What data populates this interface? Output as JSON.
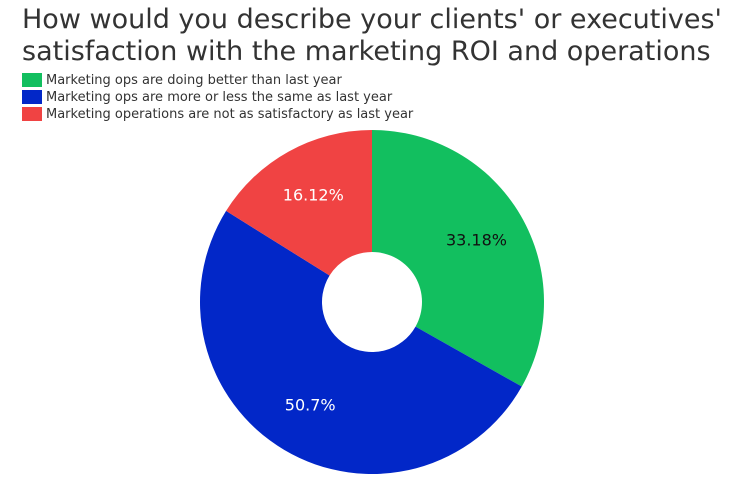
{
  "chart_data": {
    "type": "pie",
    "title": "How would you describe your clients' or executives' satisfaction with the marketing ROI and operations",
    "legend_position": "top-left",
    "slices": [
      {
        "name": "Marketing ops are doing better than last year",
        "value": 33.18,
        "label": "33.18%",
        "color": "#12bf5f",
        "label_color": "#111111"
      },
      {
        "name": "Marketing ops are more or less the same as last year",
        "value": 50.7,
        "label": "50.7%",
        "color": "#0227c8",
        "label_color": "#ffffff"
      },
      {
        "name": "Marketing operations are not as satisfactory as last year",
        "value": 16.12,
        "label": "16.12%",
        "color": "#f04343",
        "label_color": "#ffffff"
      }
    ]
  }
}
